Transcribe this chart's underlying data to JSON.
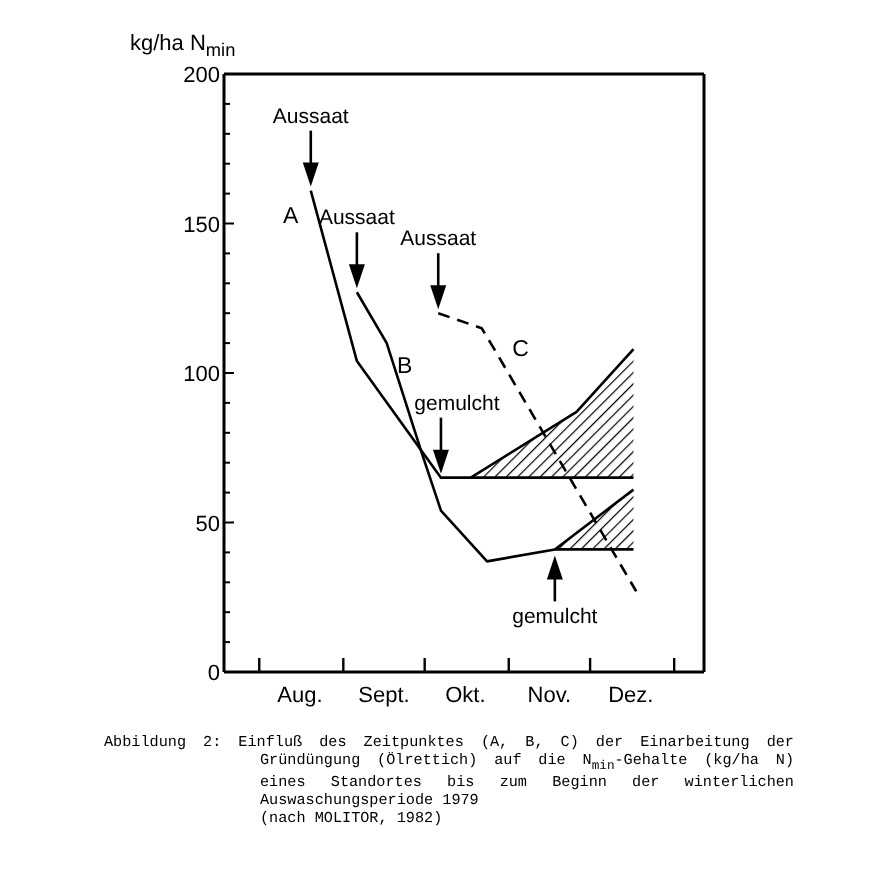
{
  "chart_data": {
    "type": "line",
    "ylabel": "kg/ha N$_{min}$",
    "xlim": [
      "1979-07-19",
      "1980-01-12"
    ],
    "xticks": [
      {
        "value": "1979-08-01",
        "label": null
      },
      {
        "value": "1979-08-16",
        "label": "Aug."
      },
      {
        "value": "1979-09-01",
        "label": null
      },
      {
        "value": "1979-09-16",
        "label": "Sept."
      },
      {
        "value": "1979-10-01",
        "label": null
      },
      {
        "value": "1979-10-16",
        "label": "Okt."
      },
      {
        "value": "1979-11-01",
        "label": null
      },
      {
        "value": "1979-11-16",
        "label": "Nov."
      },
      {
        "value": "1979-12-01",
        "label": null
      },
      {
        "value": "1979-12-16",
        "label": "Dez."
      },
      {
        "value": "1980-01-01",
        "label": null
      }
    ],
    "ylim": [
      0,
      200
    ],
    "yticks": [
      0,
      {
        "value": 10,
        "label": null
      },
      {
        "value": 20,
        "label": null
      },
      {
        "value": 30,
        "label": null
      },
      {
        "value": 40,
        "label": null
      },
      50,
      {
        "value": 60,
        "label": null
      },
      {
        "value": 70,
        "label": null
      },
      {
        "value": 80,
        "label": null
      },
      {
        "value": 90,
        "label": null
      },
      100,
      {
        "value": 110,
        "label": null
      },
      {
        "value": 120,
        "label": null
      },
      {
        "value": 130,
        "label": null
      },
      {
        "value": 140,
        "label": null
      },
      150,
      {
        "value": 160,
        "label": null
      },
      {
        "value": 170,
        "label": null
      },
      {
        "value": 180,
        "label": null
      },
      {
        "value": 190,
        "label": null
      },
      200
    ],
    "marker": "none",
    "series": [
      {
        "name": "A",
        "color": "#000000",
        "line_style": "solid",
        "x": [
          "1979-08-20",
          "1979-09-06",
          "1979-10-07",
          "1979-10-18",
          "1979-11-26",
          "1979-12-17"
        ],
        "values": [
          161,
          104,
          65,
          65,
          65,
          65
        ],
        "lower": [
          null,
          null,
          null,
          65,
          65,
          65
        ],
        "upper": [
          null,
          null,
          null,
          65,
          87,
          108
        ]
      },
      {
        "name": "B",
        "color": "#000000",
        "line_style": "solid",
        "x": [
          "1979-09-06",
          "1979-09-17",
          "1979-09-30",
          "1979-10-07",
          "1979-10-24",
          "1979-11-18",
          "1979-12-17"
        ],
        "values": [
          127,
          110,
          73,
          54,
          37,
          41,
          41
        ],
        "lower": [
          null,
          null,
          null,
          null,
          null,
          41,
          41
        ],
        "upper": [
          null,
          null,
          null,
          null,
          null,
          41,
          61
        ]
      },
      {
        "name": "C",
        "color": "#000000",
        "line_style": "dashed",
        "x": [
          "1979-10-06",
          "1979-10-22",
          "1979-10-26",
          "1979-12-18"
        ],
        "values": [
          120,
          115,
          109,
          27
        ]
      },
      {
        "color": "#000000",
        "line_style": "solid",
        "x": [
          "1979-10-18",
          "1979-11-26",
          "1979-12-17"
        ],
        "values": [
          65,
          87,
          108
        ]
      },
      {
        "color": "#000000",
        "line_style": "solid",
        "x": [
          "1979-11-18",
          "1979-12-17"
        ],
        "values": [
          41,
          61
        ]
      }
    ],
    "annotations": [
      {
        "text": "Aussaat",
        "x": "1979-08-20",
        "y": 161
      },
      {
        "text": "Aussaat",
        "x": "1979-09-06",
        "y": 127
      },
      {
        "text": "Aussaat",
        "x": "1979-10-06",
        "y": 120
      },
      {
        "text": "gemulcht",
        "x": "1979-10-07",
        "y": 65
      },
      {
        "text": "gemulcht",
        "x": "1979-11-18",
        "y": 41
      },
      "Abbildung 2: Einfluß des Zeitpunktes (A, B, C) der Einarbeitung der Gründüngung (Ölrettich) auf die N$_{min}$-Gehalte (kg/ha N) eines Standortes bis zum Beginn der winterlichen Auswaschungsperiode 1979",
      "(nach MOLITOR, 1982)"
    ]
  }
}
